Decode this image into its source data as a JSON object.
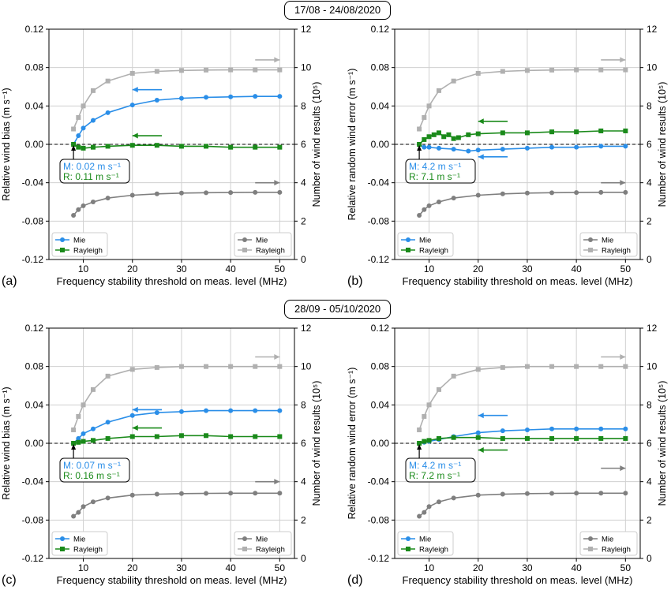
{
  "periods": [
    "17/08 - 24/08/2020",
    "28/09 - 05/10/2020"
  ],
  "colors": {
    "mie": "#2a8ee8",
    "rayleigh": "#1a8a1a",
    "count_mie": "#7f7f7f",
    "count_rayleigh": "#b0b0b0"
  },
  "chart_data": [
    {
      "type": "line",
      "panel_label": "(a)",
      "xlabel": "Frequency stability threshold on meas. level (MHz)",
      "ylabel": "Relative wind bias (m s⁻¹)",
      "y2label": "Number of wind results (10⁵)",
      "xlim": [
        3,
        53
      ],
      "ylim": [
        -0.12,
        0.12
      ],
      "y2lim": [
        0,
        12
      ],
      "xticks": [
        "10",
        "20",
        "30",
        "40",
        "50"
      ],
      "yticks": [
        "-0.12",
        "-0.08",
        "-0.04",
        "0.00",
        "0.04",
        "0.08",
        "0.12"
      ],
      "y2ticks": [
        "0",
        "2",
        "4",
        "6",
        "8",
        "10",
        "12"
      ],
      "grid": true,
      "legend_left": "bottom-left",
      "legend_right": "bottom-right",
      "series": [
        {
          "name": "Mie",
          "axis": "left",
          "marker": "circle",
          "color": "#2a8ee8",
          "x": [
            8,
            9,
            10,
            12,
            15,
            20,
            25,
            30,
            35,
            40,
            45,
            50
          ],
          "y": [
            0.0,
            0.009,
            0.017,
            0.025,
            0.033,
            0.041,
            0.046,
            0.048,
            0.049,
            0.0495,
            0.05,
            0.05
          ]
        },
        {
          "name": "Rayleigh",
          "axis": "left",
          "marker": "square",
          "color": "#1a8a1a",
          "x": [
            8,
            9,
            10,
            12,
            15,
            20,
            25,
            30,
            35,
            40,
            45,
            50
          ],
          "y": [
            0.0,
            -0.003,
            -0.004,
            -0.003,
            -0.002,
            -0.001,
            -0.001,
            -0.002,
            -0.002,
            -0.003,
            -0.003,
            -0.003
          ]
        },
        {
          "name": "Mie",
          "axis": "right",
          "marker": "circle",
          "color": "#7f7f7f",
          "x": [
            8,
            9,
            10,
            12,
            15,
            20,
            25,
            30,
            35,
            40,
            45,
            50
          ],
          "y": [
            2.3,
            2.6,
            2.8,
            3.0,
            3.2,
            3.35,
            3.42,
            3.46,
            3.48,
            3.49,
            3.5,
            3.5
          ]
        },
        {
          "name": "Rayleigh",
          "axis": "right",
          "marker": "square",
          "color": "#b0b0b0",
          "x": [
            8,
            9,
            10,
            12,
            15,
            20,
            25,
            30,
            35,
            40,
            45,
            50
          ],
          "y": [
            6.8,
            7.4,
            8.0,
            8.8,
            9.3,
            9.7,
            9.8,
            9.85,
            9.87,
            9.88,
            9.88,
            9.88
          ]
        }
      ],
      "arrows": [
        {
          "color": "#2a8ee8",
          "direction": "left",
          "x": [
            20,
            26
          ],
          "y": 0.057
        },
        {
          "color": "#1a8a1a",
          "direction": "left",
          "x": [
            20,
            26
          ],
          "y": 0.009
        },
        {
          "color": "#7f7f7f",
          "direction": "right",
          "x": [
            45,
            50
          ],
          "y": -0.04
        },
        {
          "color": "#b0b0b0",
          "direction": "right",
          "x": [
            45,
            50
          ],
          "y": 0.088
        }
      ],
      "annotation": {
        "mie": "M: 0.02 m s⁻¹",
        "rayleigh": "R: 0.11 m s⁻¹"
      }
    },
    {
      "type": "line",
      "panel_label": "(b)",
      "xlabel": "Frequency stability threshold on meas. level (MHz)",
      "ylabel": "Relative random wind error (m s⁻¹)",
      "y2label": "Number of wind results (10⁵)",
      "xlim": [
        3,
        53
      ],
      "ylim": [
        -0.12,
        0.12
      ],
      "y2lim": [
        0,
        12
      ],
      "xticks": [
        "10",
        "20",
        "30",
        "40",
        "50"
      ],
      "yticks": [
        "-0.12",
        "-0.08",
        "-0.04",
        "0.00",
        "0.04",
        "0.08",
        "0.12"
      ],
      "y2ticks": [
        "0",
        "2",
        "4",
        "6",
        "8",
        "10",
        "12"
      ],
      "grid": true,
      "legend_left": "bottom-left",
      "legend_right": "bottom-right",
      "series": [
        {
          "name": "Mie",
          "axis": "left",
          "marker": "circle",
          "color": "#2a8ee8",
          "x": [
            8,
            9,
            10,
            12,
            15,
            18,
            20,
            25,
            30,
            35,
            40,
            45,
            50
          ],
          "y": [
            0.0,
            -0.003,
            -0.003,
            -0.004,
            -0.005,
            -0.007,
            -0.006,
            -0.005,
            -0.004,
            -0.003,
            -0.003,
            -0.002,
            -0.002
          ]
        },
        {
          "name": "Rayleigh",
          "axis": "left",
          "marker": "square",
          "color": "#1a8a1a",
          "x": [
            8,
            9,
            10,
            11,
            12,
            13,
            14,
            15,
            16,
            18,
            20,
            25,
            30,
            35,
            40,
            45,
            50
          ],
          "y": [
            0.0,
            0.005,
            0.008,
            0.01,
            0.012,
            0.008,
            0.01,
            0.006,
            0.007,
            0.01,
            0.011,
            0.012,
            0.012,
            0.013,
            0.013,
            0.014,
            0.014
          ]
        },
        {
          "name": "Mie",
          "axis": "right",
          "marker": "circle",
          "color": "#7f7f7f",
          "x": [
            8,
            9,
            10,
            12,
            15,
            20,
            25,
            30,
            35,
            40,
            45,
            50
          ],
          "y": [
            2.3,
            2.6,
            2.8,
            3.0,
            3.2,
            3.35,
            3.42,
            3.46,
            3.48,
            3.49,
            3.5,
            3.5
          ]
        },
        {
          "name": "Rayleigh",
          "axis": "right",
          "marker": "square",
          "color": "#b0b0b0",
          "x": [
            8,
            9,
            10,
            12,
            15,
            20,
            25,
            30,
            35,
            40,
            45,
            50
          ],
          "y": [
            6.8,
            7.4,
            8.0,
            8.8,
            9.3,
            9.7,
            9.8,
            9.85,
            9.87,
            9.88,
            9.88,
            9.88
          ]
        }
      ],
      "arrows": [
        {
          "color": "#1a8a1a",
          "direction": "left",
          "x": [
            20,
            26
          ],
          "y": 0.024
        },
        {
          "color": "#2a8ee8",
          "direction": "left",
          "x": [
            20,
            26
          ],
          "y": -0.013
        },
        {
          "color": "#7f7f7f",
          "direction": "right",
          "x": [
            45,
            50
          ],
          "y": -0.04
        },
        {
          "color": "#b0b0b0",
          "direction": "right",
          "x": [
            45,
            50
          ],
          "y": 0.088
        }
      ],
      "annotation": {
        "mie": "M: 4.2 m s⁻¹",
        "rayleigh": "R: 7.1 m s⁻¹"
      }
    },
    {
      "type": "line",
      "panel_label": "(c)",
      "xlabel": "Frequency stability threshold on meas. level (MHz)",
      "ylabel": "Relative wind bias (m s⁻¹)",
      "y2label": "Number of wind results (10⁵)",
      "xlim": [
        3,
        53
      ],
      "ylim": [
        -0.12,
        0.12
      ],
      "y2lim": [
        0,
        12
      ],
      "xticks": [
        "10",
        "20",
        "30",
        "40",
        "50"
      ],
      "yticks": [
        "-0.12",
        "-0.08",
        "-0.04",
        "0.00",
        "0.04",
        "0.08",
        "0.12"
      ],
      "y2ticks": [
        "0",
        "2",
        "4",
        "6",
        "8",
        "10",
        "12"
      ],
      "grid": true,
      "legend_left": "bottom-left",
      "legend_right": "bottom-right",
      "series": [
        {
          "name": "Mie",
          "axis": "left",
          "marker": "circle",
          "color": "#2a8ee8",
          "x": [
            8,
            9,
            10,
            12,
            15,
            20,
            25,
            30,
            35,
            40,
            45,
            50
          ],
          "y": [
            0.0,
            0.005,
            0.01,
            0.015,
            0.022,
            0.029,
            0.032,
            0.033,
            0.034,
            0.034,
            0.034,
            0.034
          ]
        },
        {
          "name": "Rayleigh",
          "axis": "left",
          "marker": "square",
          "color": "#1a8a1a",
          "x": [
            8,
            9,
            10,
            12,
            15,
            20,
            25,
            30,
            35,
            40,
            45,
            50
          ],
          "y": [
            0.0,
            0.001,
            0.002,
            0.003,
            0.005,
            0.007,
            0.007,
            0.008,
            0.008,
            0.007,
            0.007,
            0.007
          ]
        },
        {
          "name": "Mie",
          "axis": "right",
          "marker": "circle",
          "color": "#7f7f7f",
          "x": [
            8,
            9,
            10,
            12,
            15,
            20,
            25,
            30,
            35,
            40,
            45,
            50
          ],
          "y": [
            2.2,
            2.4,
            2.7,
            2.95,
            3.15,
            3.3,
            3.35,
            3.38,
            3.39,
            3.4,
            3.4,
            3.4
          ]
        },
        {
          "name": "Rayleigh",
          "axis": "right",
          "marker": "square",
          "color": "#b0b0b0",
          "x": [
            8,
            9,
            10,
            12,
            15,
            20,
            25,
            30,
            35,
            40,
            45,
            50
          ],
          "y": [
            6.7,
            7.4,
            8.0,
            8.8,
            9.5,
            9.85,
            9.95,
            10.0,
            10.0,
            10.0,
            10.0,
            10.0
          ]
        }
      ],
      "arrows": [
        {
          "color": "#2a8ee8",
          "direction": "left",
          "x": [
            20,
            26
          ],
          "y": 0.035
        },
        {
          "color": "#1a8a1a",
          "direction": "left",
          "x": [
            20,
            26
          ],
          "y": 0.016
        },
        {
          "color": "#7f7f7f",
          "direction": "right",
          "x": [
            45,
            50
          ],
          "y": -0.04
        },
        {
          "color": "#b0b0b0",
          "direction": "right",
          "x": [
            45,
            50
          ],
          "y": 0.09
        }
      ],
      "annotation": {
        "mie": "M: 0.07 m s⁻¹",
        "rayleigh": "R: 0.16 m s⁻¹"
      }
    },
    {
      "type": "line",
      "panel_label": "(d)",
      "xlabel": "Frequency stability threshold on meas. level (MHz)",
      "ylabel": "Relative random wind error (m s⁻¹)",
      "y2label": "Number of wind results (10⁵)",
      "xlim": [
        3,
        53
      ],
      "ylim": [
        -0.12,
        0.12
      ],
      "y2lim": [
        0,
        12
      ],
      "xticks": [
        "10",
        "20",
        "30",
        "40",
        "50"
      ],
      "yticks": [
        "-0.12",
        "-0.08",
        "-0.04",
        "0.00",
        "0.04",
        "0.08",
        "0.12"
      ],
      "y2ticks": [
        "0",
        "2",
        "4",
        "6",
        "8",
        "10",
        "12"
      ],
      "grid": true,
      "legend_left": "bottom-left",
      "legend_right": "bottom-right",
      "series": [
        {
          "name": "Mie",
          "axis": "left",
          "marker": "circle",
          "color": "#2a8ee8",
          "x": [
            8,
            9,
            10,
            12,
            15,
            20,
            25,
            30,
            35,
            40,
            45,
            50
          ],
          "y": [
            0.0,
            0.001,
            0.002,
            0.004,
            0.007,
            0.011,
            0.013,
            0.014,
            0.015,
            0.015,
            0.015,
            0.015
          ]
        },
        {
          "name": "Rayleigh",
          "axis": "left",
          "marker": "square",
          "color": "#1a8a1a",
          "x": [
            8,
            9,
            10,
            12,
            15,
            20,
            25,
            30,
            35,
            40,
            45,
            50
          ],
          "y": [
            0.0,
            0.002,
            0.003,
            0.005,
            0.006,
            0.006,
            0.005,
            0.005,
            0.005,
            0.005,
            0.005,
            0.005
          ]
        },
        {
          "name": "Mie",
          "axis": "right",
          "marker": "circle",
          "color": "#7f7f7f",
          "x": [
            8,
            9,
            10,
            12,
            15,
            20,
            25,
            30,
            35,
            40,
            45,
            50
          ],
          "y": [
            2.2,
            2.4,
            2.7,
            2.95,
            3.15,
            3.3,
            3.35,
            3.38,
            3.39,
            3.4,
            3.4,
            3.4
          ]
        },
        {
          "name": "Rayleigh",
          "axis": "right",
          "marker": "square",
          "color": "#b0b0b0",
          "x": [
            8,
            9,
            10,
            12,
            15,
            20,
            25,
            30,
            35,
            40,
            45,
            50
          ],
          "y": [
            6.7,
            7.4,
            8.0,
            8.8,
            9.5,
            9.85,
            9.95,
            10.0,
            10.0,
            10.0,
            10.0,
            10.0
          ]
        }
      ],
      "arrows": [
        {
          "color": "#2a8ee8",
          "direction": "left",
          "x": [
            20,
            26
          ],
          "y": 0.029
        },
        {
          "color": "#1a8a1a",
          "direction": "left",
          "x": [
            20,
            26
          ],
          "y": -0.007
        },
        {
          "color": "#7f7f7f",
          "direction": "right",
          "x": [
            45,
            50
          ],
          "y": -0.026
        },
        {
          "color": "#b0b0b0",
          "direction": "right",
          "x": [
            45,
            50
          ],
          "y": 0.09
        }
      ],
      "annotation": {
        "mie": "M: 4.2 m s⁻¹",
        "rayleigh": "R: 7.2 m s⁻¹"
      }
    }
  ]
}
